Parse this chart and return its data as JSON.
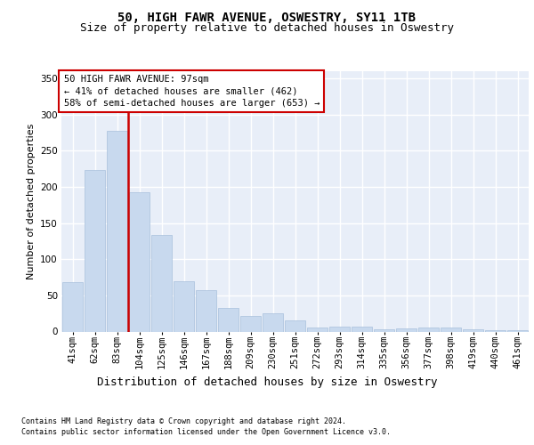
{
  "title1": "50, HIGH FAWR AVENUE, OSWESTRY, SY11 1TB",
  "title2": "Size of property relative to detached houses in Oswestry",
  "xlabel": "Distribution of detached houses by size in Oswestry",
  "ylabel": "Number of detached properties",
  "categories": [
    "41sqm",
    "62sqm",
    "83sqm",
    "104sqm",
    "125sqm",
    "146sqm",
    "167sqm",
    "188sqm",
    "209sqm",
    "230sqm",
    "251sqm",
    "272sqm",
    "293sqm",
    "314sqm",
    "335sqm",
    "356sqm",
    "377sqm",
    "398sqm",
    "419sqm",
    "440sqm",
    "461sqm"
  ],
  "values": [
    68,
    224,
    278,
    193,
    133,
    70,
    57,
    33,
    21,
    25,
    15,
    5,
    7,
    7,
    3,
    4,
    6,
    6,
    3,
    2,
    2
  ],
  "bar_color": "#c8d9ee",
  "bar_edge_color": "#a8c0dc",
  "vline_x": 2.5,
  "vline_color": "#cc0000",
  "annotation_text": "50 HIGH FAWR AVENUE: 97sqm\n← 41% of detached houses are smaller (462)\n58% of semi-detached houses are larger (653) →",
  "annotation_box_color": "white",
  "annotation_box_edge": "#cc0000",
  "ylim": [
    0,
    360
  ],
  "yticks": [
    0,
    50,
    100,
    150,
    200,
    250,
    300,
    350
  ],
  "footer1": "Contains HM Land Registry data © Crown copyright and database right 2024.",
  "footer2": "Contains public sector information licensed under the Open Government Licence v3.0.",
  "bg_color": "#e8eef8",
  "grid_color": "#ffffff",
  "title1_fontsize": 10,
  "title2_fontsize": 9,
  "xlabel_fontsize": 9,
  "ylabel_fontsize": 8,
  "tick_fontsize": 7.5,
  "annot_fontsize": 7.5,
  "footer_fontsize": 6
}
